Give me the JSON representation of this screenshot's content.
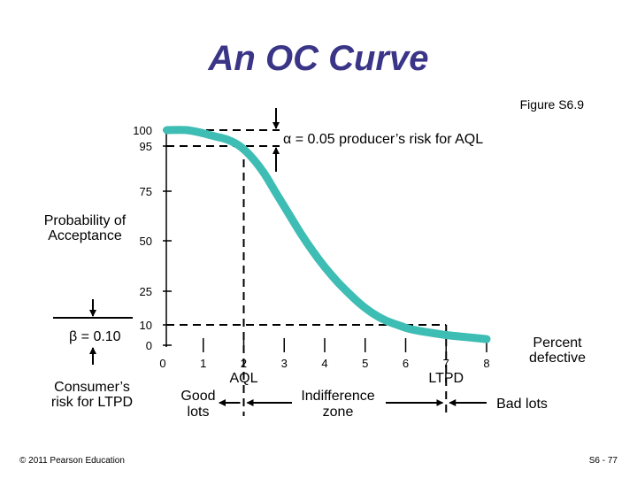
{
  "slide": {
    "title": "An OC Curve",
    "figure_ref": "Figure S6.9",
    "footer_left": "© 2011 Pearson Education",
    "footer_right": "S6 - 77"
  },
  "colors": {
    "title": "#3b3587",
    "curve": "#3dbdb3"
  },
  "chart_data": {
    "type": "line",
    "ylabel": "Probability of Acceptance",
    "xlabel": "Percent defective",
    "xlim": [
      0,
      8.5
    ],
    "ylim": [
      0,
      100
    ],
    "x_ticks": [
      "0",
      "1",
      "2",
      "3",
      "4",
      "5",
      "6",
      "7",
      "8"
    ],
    "y_ticks": [
      "100",
      "95",
      "75",
      "50",
      "25",
      "10",
      "0"
    ],
    "series": [
      {
        "x": [
          0.1,
          0.6,
          1.0,
          1.3,
          1.6,
          1.9,
          2.2,
          2.5,
          2.8,
          3.1,
          3.4,
          3.7,
          4.0,
          4.3,
          4.6,
          4.9,
          5.2,
          5.5,
          5.8,
          6.1,
          6.5,
          7.0,
          7.5,
          8.0
        ],
        "y": [
          100,
          100,
          99,
          98,
          97,
          95,
          90,
          83,
          74,
          64,
          54,
          45,
          37,
          30,
          24,
          19,
          15,
          12,
          10,
          8,
          6.5,
          5,
          4,
          3
        ]
      }
    ],
    "annotations": {
      "alpha": "α = 0.05 producer’s risk for AQL",
      "beta": "β = 0.10",
      "consumers_risk": "Consumer’s risk for LTPD",
      "aql": "AQL",
      "ltpd": "LTPD",
      "good_lots": "Good lots",
      "indifference_zone": "Indifference zone",
      "bad_lots": "Bad lots",
      "aql_x": 2,
      "ltpd_x": 7,
      "alpha_y": 95,
      "beta_y": 10
    }
  }
}
